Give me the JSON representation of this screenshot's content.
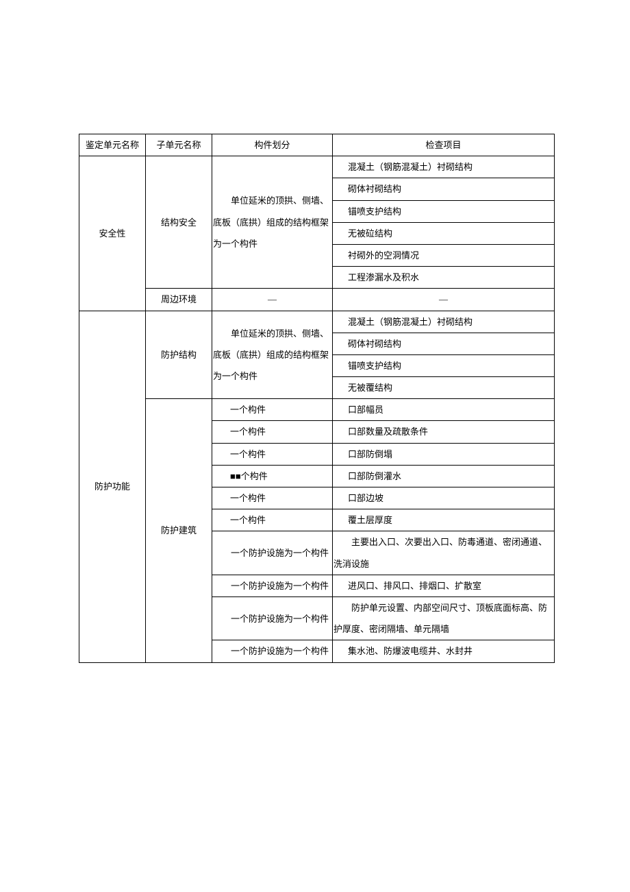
{
  "header": {
    "c1": "鉴定单元名称",
    "c2": "子单元名称",
    "c3": "构件划分",
    "c4": "检查项目"
  },
  "r1": {
    "unit": "安全性",
    "sub1": "结构安全",
    "comp1": "单位延米的顶拱、侧墙、底板（底拱）组成的结构框架为一个构件",
    "i1": "混凝土（钢筋混凝土）衬砌结构",
    "i2": "砌体衬砌结构",
    "i3": "锚喷支护结构",
    "i4": "无被砬结构",
    "i5": "衬砌外的空洞情况",
    "i6": "工程渗漏水及积水",
    "sub2": "周边环境",
    "dash": "—"
  },
  "r2": {
    "unit": "防护功能",
    "sub1": "防护结构",
    "comp1": "单位延米的顶拱、侧墙、底板（底拱）组成的结构框架为一个构件",
    "i1": "混凝土（钢筋混凝土）衬砌结构",
    "i2": "砌体衬砌结构",
    "i3": "锚喷支护结构",
    "i4": "无被覆结构",
    "sub2": "防护建筑",
    "c_one": "一个构件",
    "c_black": "■■个构件",
    "c_fac": "一个防护设施为一个构件",
    "j1": "口部幅员",
    "j2": "口部数量及疏散条件",
    "j3": "口部防倒塌",
    "j4": "口部防倒灌水",
    "j5": "口部边坡",
    "j6": "覆土层厚度",
    "j7": "主要出入口、次要出入口、防毒通道、密闭通道、洗消设施",
    "j8": "进风口、排风口、排烟口、扩散室",
    "j9": "防护单元设置、内部空间尺寸、顶板底面标高、防护厚度、密闭隔墙、单元隔墙",
    "j10": "集水池、防爆波电缆井、水封井"
  }
}
